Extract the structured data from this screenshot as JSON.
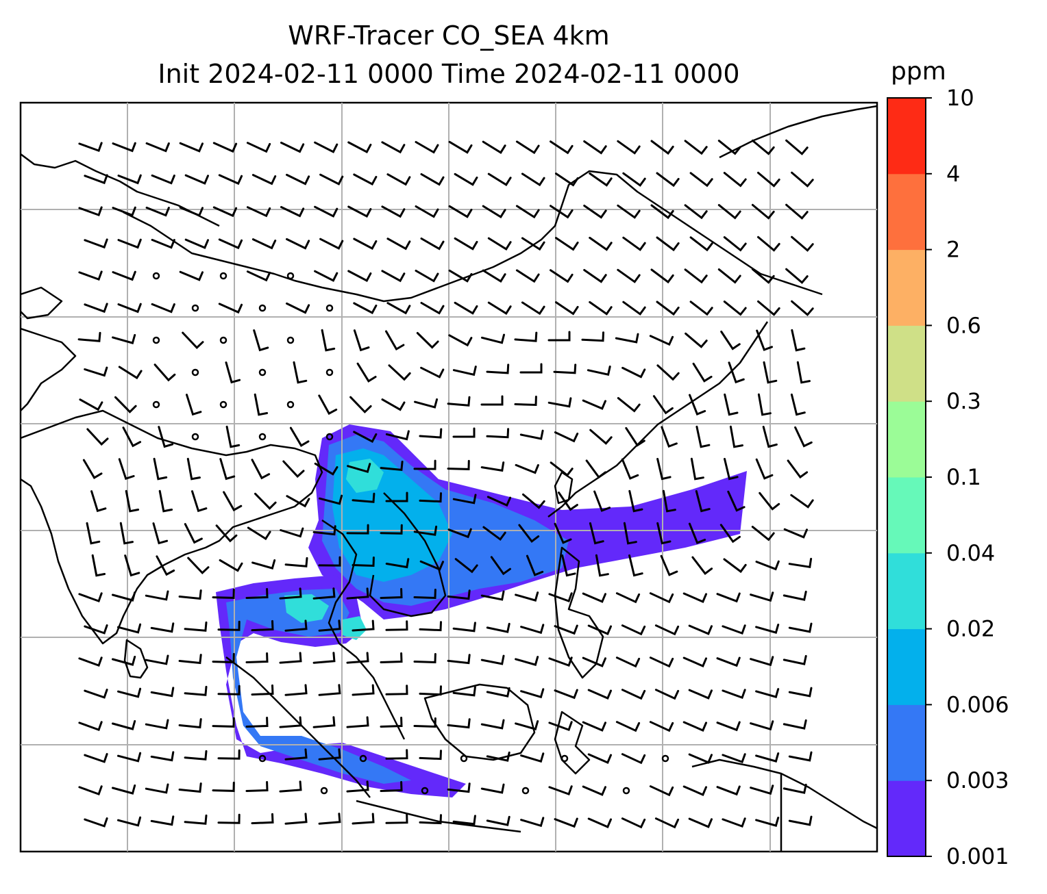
{
  "title": {
    "line1": "WRF-Tracer CO_SEA 4km",
    "line2": "Init 2024-02-11 0000 Time 2024-02-11 0000"
  },
  "colorbar": {
    "unit": "ppm",
    "levels": [
      "0.001",
      "0.003",
      "0.006",
      "0.02",
      "0.04",
      "0.1",
      "0.3",
      "0.6",
      "2",
      "4",
      "10"
    ],
    "colors": [
      "#6329fa",
      "#3478f5",
      "#03b0ec",
      "#30deda",
      "#66f9b9",
      "#9bfc97",
      "#cfe087",
      "#fdb064",
      "#fe703d",
      "#fe2b15"
    ]
  },
  "map_colors": {
    "tracer_low": "#6329fa",
    "tracer_mid": "#3478f5",
    "tracer_high": "#03b0ec",
    "tracer_peak": "#30deda",
    "gridline": "#b0b0b0",
    "coast": "#000000"
  }
}
